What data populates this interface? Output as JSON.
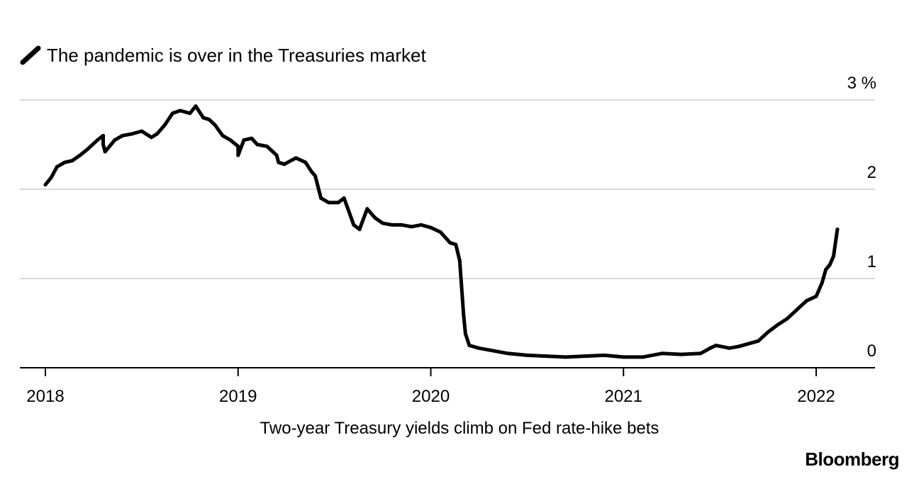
{
  "chart_data": {
    "type": "line",
    "title": "The pandemic is over in the Treasuries market",
    "caption": "Two-year Treasury yields climb on Fed rate-hike bets",
    "source": "Bloomberg",
    "legend": [
      {
        "name": "The pandemic is over in the Treasuries market",
        "color": "#000000"
      }
    ],
    "ylabel": "%",
    "ylim": [
      0,
      3
    ],
    "yticks": [
      {
        "value": 0,
        "label": "0"
      },
      {
        "value": 1,
        "label": "1"
      },
      {
        "value": 2,
        "label": "2"
      },
      {
        "value": 3,
        "label": "3 %"
      }
    ],
    "xlim": [
      2017.87,
      2022.3
    ],
    "xticks": [
      {
        "value": 2018,
        "label": "2018"
      },
      {
        "value": 2019,
        "label": "2019"
      },
      {
        "value": 2020,
        "label": "2020"
      },
      {
        "value": 2021,
        "label": "2021"
      },
      {
        "value": 2022,
        "label": "2022"
      }
    ],
    "grid": true,
    "series": [
      {
        "name": "Two-year Treasury yield",
        "color": "#000000",
        "x": [
          2018.0,
          2018.03,
          2018.06,
          2018.1,
          2018.14,
          2018.18,
          2018.22,
          2018.27,
          2018.3,
          2018.3,
          2018.31,
          2018.36,
          2018.4,
          2018.45,
          2018.5,
          2018.55,
          2018.58,
          2018.62,
          2018.66,
          2018.7,
          2018.75,
          2018.78,
          2018.82,
          2018.85,
          2018.88,
          2018.92,
          2018.96,
          2019.0,
          2019.0,
          2019.03,
          2019.07,
          2019.1,
          2019.15,
          2019.2,
          2019.21,
          2019.24,
          2019.3,
          2019.35,
          2019.38,
          2019.4,
          2019.43,
          2019.47,
          2019.52,
          2019.55,
          2019.58,
          2019.6,
          2019.63,
          2019.67,
          2019.71,
          2019.75,
          2019.8,
          2019.85,
          2019.9,
          2019.95,
          2020.0,
          2020.05,
          2020.1,
          2020.13,
          2020.15,
          2020.16,
          2020.17,
          2020.18,
          2020.2,
          2020.25,
          2020.3,
          2020.35,
          2020.4,
          2020.5,
          2020.6,
          2020.7,
          2020.8,
          2020.9,
          2021.0,
          2021.1,
          2021.2,
          2021.3,
          2021.4,
          2021.45,
          2021.48,
          2021.55,
          2021.6,
          2021.7,
          2021.75,
          2021.8,
          2021.85,
          2021.9,
          2021.95,
          2022.0,
          2022.03,
          2022.05,
          2022.07,
          2022.09,
          2022.11
        ],
        "values": [
          2.05,
          2.13,
          2.25,
          2.3,
          2.32,
          2.38,
          2.45,
          2.55,
          2.6,
          2.5,
          2.42,
          2.55,
          2.6,
          2.62,
          2.65,
          2.58,
          2.62,
          2.72,
          2.85,
          2.88,
          2.85,
          2.93,
          2.8,
          2.78,
          2.72,
          2.6,
          2.55,
          2.48,
          2.38,
          2.55,
          2.57,
          2.5,
          2.48,
          2.38,
          2.3,
          2.28,
          2.35,
          2.3,
          2.2,
          2.15,
          1.9,
          1.85,
          1.85,
          1.9,
          1.72,
          1.6,
          1.55,
          1.78,
          1.68,
          1.62,
          1.6,
          1.6,
          1.58,
          1.6,
          1.57,
          1.52,
          1.4,
          1.38,
          1.2,
          0.9,
          0.6,
          0.38,
          0.25,
          0.22,
          0.2,
          0.18,
          0.16,
          0.14,
          0.13,
          0.12,
          0.13,
          0.14,
          0.12,
          0.12,
          0.16,
          0.15,
          0.16,
          0.22,
          0.25,
          0.22,
          0.24,
          0.3,
          0.4,
          0.48,
          0.55,
          0.65,
          0.75,
          0.8,
          0.95,
          1.1,
          1.15,
          1.25,
          1.55
        ]
      }
    ]
  }
}
